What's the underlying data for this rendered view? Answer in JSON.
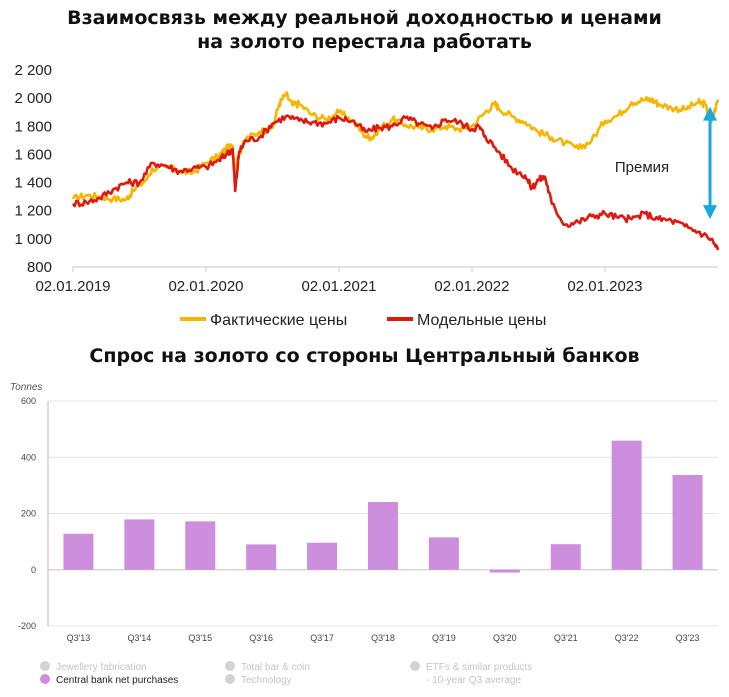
{
  "titles": {
    "top_line1": "Взаимосвязь между реальной доходностью и ценами",
    "top_line2": "на золото перестала работать",
    "bottom": "Спрос на золото со стороны Центральный банков"
  },
  "chart_data": [
    {
      "type": "line",
      "ylim": [
        800,
        2200
      ],
      "yticks": [
        "2 200",
        "2 000",
        "1 800",
        "1 600",
        "1 400",
        "1 200",
        "1 000",
        "800"
      ],
      "ytick_values": [
        2200,
        2000,
        1800,
        1600,
        1400,
        1200,
        1000,
        800
      ],
      "xticks": [
        "02.01.2019",
        "02.01.2020",
        "02.01.2021",
        "02.01.2022",
        "02.01.2023"
      ],
      "xtick_values": [
        2019.0,
        2020.0,
        2021.0,
        2022.0,
        2023.0
      ],
      "xlim": [
        2019.0,
        2023.85
      ],
      "annotation": "Премия",
      "series": [
        {
          "name": "Фактические цены",
          "color": "#F7B500",
          "x": [
            2019.0,
            2019.1,
            2019.2,
            2019.3,
            2019.4,
            2019.45,
            2019.55,
            2019.6,
            2019.7,
            2019.8,
            2019.9,
            2020.0,
            2020.1,
            2020.15,
            2020.2,
            2020.22,
            2020.25,
            2020.3,
            2020.4,
            2020.5,
            2020.55,
            2020.6,
            2020.65,
            2020.7,
            2020.8,
            2020.9,
            2021.0,
            2021.1,
            2021.2,
            2021.25,
            2021.3,
            2021.4,
            2021.5,
            2021.6,
            2021.7,
            2021.8,
            2021.9,
            2022.0,
            2022.1,
            2022.17,
            2022.2,
            2022.3,
            2022.4,
            2022.5,
            2022.6,
            2022.7,
            2022.8,
            2022.9,
            2023.0,
            2023.1,
            2023.2,
            2023.3,
            2023.35,
            2023.4,
            2023.5,
            2023.6,
            2023.7,
            2023.75,
            2023.8,
            2023.85
          ],
          "y": [
            1285,
            1310,
            1300,
            1285,
            1280,
            1340,
            1420,
            1500,
            1510,
            1480,
            1470,
            1540,
            1590,
            1640,
            1660,
            1480,
            1610,
            1710,
            1760,
            1790,
            1960,
            2030,
            1950,
            1960,
            1880,
            1850,
            1900,
            1840,
            1730,
            1720,
            1780,
            1850,
            1810,
            1790,
            1780,
            1800,
            1780,
            1800,
            1900,
            1960,
            1930,
            1870,
            1830,
            1760,
            1720,
            1680,
            1640,
            1700,
            1840,
            1880,
            1970,
            1990,
            1990,
            1960,
            1930,
            1920,
            1970,
            1960,
            1830,
            1990
          ],
          "values": [
            1285,
            1310,
            1300,
            1285,
            1280,
            1340,
            1420,
            1500,
            1510,
            1480,
            1470,
            1540,
            1590,
            1640,
            1660,
            1480,
            1610,
            1710,
            1760,
            1790,
            1960,
            2030,
            1950,
            1960,
            1880,
            1850,
            1900,
            1840,
            1730,
            1720,
            1780,
            1850,
            1810,
            1790,
            1780,
            1800,
            1780,
            1800,
            1900,
            1960,
            1930,
            1870,
            1830,
            1760,
            1720,
            1680,
            1640,
            1700,
            1840,
            1880,
            1970,
            1990,
            1990,
            1960,
            1930,
            1920,
            1970,
            1960,
            1830,
            1990
          ]
        },
        {
          "name": "Модельные цены",
          "color": "#E0190E",
          "x": [
            2019.0,
            2019.1,
            2019.2,
            2019.3,
            2019.4,
            2019.5,
            2019.6,
            2019.7,
            2019.8,
            2019.9,
            2020.0,
            2020.1,
            2020.15,
            2020.2,
            2020.22,
            2020.25,
            2020.3,
            2020.4,
            2020.5,
            2020.6,
            2020.7,
            2020.8,
            2020.9,
            2021.0,
            2021.1,
            2021.2,
            2021.3,
            2021.4,
            2021.5,
            2021.6,
            2021.7,
            2021.8,
            2021.9,
            2022.0,
            2022.05,
            2022.1,
            2022.2,
            2022.3,
            2022.4,
            2022.45,
            2022.5,
            2022.55,
            2022.6,
            2022.7,
            2022.8,
            2022.9,
            2023.0,
            2023.1,
            2023.2,
            2023.3,
            2023.4,
            2023.5,
            2023.6,
            2023.7,
            2023.8,
            2023.85
          ],
          "y": [
            1250,
            1260,
            1290,
            1350,
            1400,
            1400,
            1540,
            1520,
            1480,
            1500,
            1510,
            1560,
            1600,
            1640,
            1340,
            1620,
            1700,
            1720,
            1820,
            1870,
            1840,
            1830,
            1820,
            1860,
            1840,
            1760,
            1790,
            1800,
            1860,
            1820,
            1780,
            1850,
            1830,
            1780,
            1800,
            1730,
            1620,
            1500,
            1450,
            1360,
            1420,
            1440,
            1250,
            1100,
            1120,
            1160,
            1180,
            1150,
            1140,
            1180,
            1140,
            1130,
            1090,
            1050,
            1000,
            920
          ],
          "values": [
            1250,
            1260,
            1290,
            1350,
            1400,
            1400,
            1540,
            1520,
            1480,
            1500,
            1510,
            1560,
            1600,
            1640,
            1340,
            1620,
            1700,
            1720,
            1820,
            1870,
            1840,
            1830,
            1820,
            1860,
            1840,
            1760,
            1790,
            1800,
            1860,
            1820,
            1780,
            1850,
            1830,
            1780,
            1800,
            1730,
            1620,
            1500,
            1450,
            1360,
            1420,
            1440,
            1250,
            1100,
            1120,
            1160,
            1180,
            1150,
            1140,
            1180,
            1140,
            1130,
            1090,
            1050,
            1000,
            920
          ]
        }
      ]
    },
    {
      "type": "bar",
      "ylabel": "Tonnes",
      "ylim": [
        -200,
        600
      ],
      "yticks": [
        "600",
        "400",
        "200",
        "0",
        "-200"
      ],
      "ytick_values": [
        600,
        400,
        200,
        0,
        -200
      ],
      "categories": [
        "Q3'13",
        "Q3'14",
        "Q3'15",
        "Q3'16",
        "Q3'17",
        "Q3'18",
        "Q3'19",
        "Q3'20",
        "Q3'21",
        "Q3'22",
        "Q3'23"
      ],
      "series": [
        {
          "name": "Central bank net purchases",
          "color": "#CC8EDD",
          "values": [
            128,
            179,
            172,
            90,
            96,
            241,
            115,
            -10,
            91,
            459,
            337
          ]
        }
      ],
      "legend": {
        "placement": "bottom",
        "items": [
          {
            "label": "Jewellery fabrication",
            "active": false
          },
          {
            "label": "Total bar & coin",
            "active": false
          },
          {
            "label": "ETFs & similar products",
            "active": false
          },
          {
            "label": "Central bank net purchases",
            "active": true
          },
          {
            "label": "Technology",
            "active": false
          },
          {
            "label": "- 10-year Q3 average",
            "active": false
          }
        ]
      }
    }
  ]
}
